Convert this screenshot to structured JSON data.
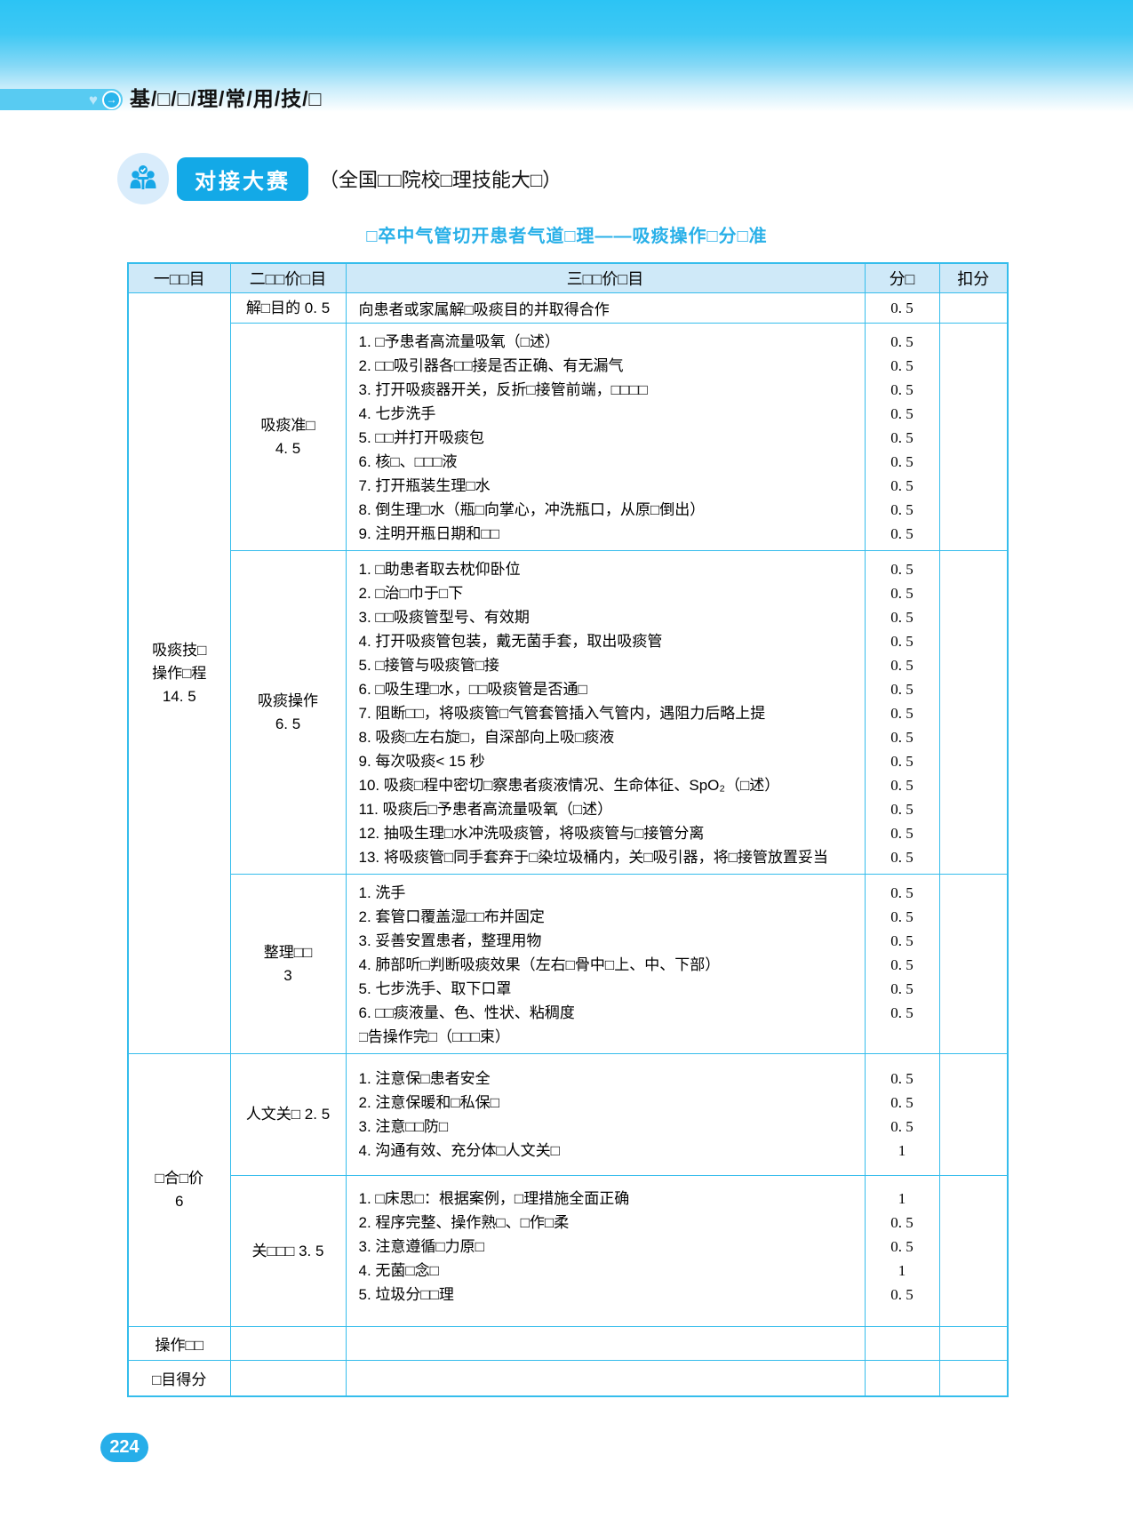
{
  "icons": {
    "heart_glyph": "♥",
    "arrow_glyph": "→"
  },
  "colors": {
    "accent_cyan": "#2bb7ec",
    "table_border": "#35bdec",
    "table_header_bg": "#cfe9f8",
    "badge_button_bg": "#13a9e7",
    "title_text": "#29b0e8",
    "page_pill_bg": "#27aee9"
  },
  "banner": {
    "chapter_title": "基/□/□/理/常/用/技/□"
  },
  "badge": {
    "label": "对接大赛",
    "subtitle": "（全国□□院校□理技能大□）"
  },
  "table_title": "□卒中气管切开患者气道□理——吸痰操作□分□准",
  "score_table": {
    "headers": [
      "一□□目",
      "二□□价□目",
      "三□□价□目",
      "分□",
      "扣分"
    ],
    "level1": [
      {
        "lines": [
          "吸痰技□",
          "操作□程",
          "14. 5"
        ]
      },
      {
        "lines": [
          "□合□价",
          "6"
        ]
      }
    ],
    "groups": [
      {
        "label_lines": [
          "解□目的 0. 5"
        ],
        "items": [
          "向患者或家属解□吸痰目的并取得合作"
        ],
        "scores": [
          "0. 5"
        ]
      },
      {
        "label_lines": [
          "吸痰准□",
          "4. 5"
        ],
        "items": [
          "1. □予患者高流量吸氧（□述）",
          "2. □□吸引器各□□接是否正确、有无漏气",
          "3. 打开吸痰器开关，反折□接管前端，□□□□",
          "4. 七步洗手",
          "5. □□并打开吸痰包",
          "6. 核□、□□□液",
          "7. 打开瓶装生理□水",
          "8. 倒生理□水（瓶□向掌心，冲洗瓶口，从原□倒出）",
          "9. 注明开瓶日期和□□"
        ],
        "scores": [
          "0. 5",
          "0. 5",
          "0. 5",
          "0. 5",
          "0. 5",
          "0. 5",
          "0. 5",
          "0. 5",
          "0. 5"
        ]
      },
      {
        "label_lines": [
          "吸痰操作",
          "6. 5"
        ],
        "items": [
          "1. □助患者取去枕仰卧位",
          "2. □治□巾于□下",
          "3. □□吸痰管型号、有效期",
          "4. 打开吸痰管包装，戴无菌手套，取出吸痰管",
          "5. □接管与吸痰管□接",
          "6. □吸生理□水，□□吸痰管是否通□",
          "7. 阻断□□，将吸痰管□气管套管插入气管内，遇阻力后略上提",
          "8. 吸痰□左右旋□，自深部向上吸□痰液",
          "9. 每次吸痰< 15 秒",
          "10. 吸痰□程中密切□察患者痰液情况、生命体征、SpO₂（□述）",
          "11. 吸痰后□予患者高流量吸氧（□述）",
          "12. 抽吸生理□水冲洗吸痰管，将吸痰管与□接管分离",
          "13. 将吸痰管□同手套弃于□染垃圾桶内，关□吸引器，将□接管放置妥当"
        ],
        "scores": [
          "0. 5",
          "0. 5",
          "0. 5",
          "0. 5",
          "0. 5",
          "0. 5",
          "0. 5",
          "0. 5",
          "0. 5",
          "0. 5",
          "0. 5",
          "0. 5",
          "0. 5"
        ]
      },
      {
        "label_lines": [
          "整理□□",
          "3"
        ],
        "items": [
          "1. 洗手",
          "2. 套管口覆盖湿□□布并固定",
          "3. 妥善安置患者，整理用物",
          "4. 肺部听□判断吸痰效果（左右□骨中□上、中、下部）",
          "5. 七步洗手、取下口罩",
          "6. □□痰液量、色、性状、粘稠度",
          "□告操作完□（□□□束）"
        ],
        "scores": [
          "0. 5",
          "0. 5",
          "0. 5",
          "0. 5",
          "0. 5",
          "0. 5",
          ""
        ]
      },
      {
        "label_lines": [
          "人文关□ 2. 5"
        ],
        "items": [
          "1. 注意保□患者安全",
          "2. 注意保暖和□私保□",
          "3. 注意□□防□",
          "4. 沟通有效、充分体□人文关□"
        ],
        "scores": [
          "0. 5",
          "0. 5",
          "0. 5",
          "1"
        ]
      },
      {
        "label_lines": [
          "关□□□ 3. 5"
        ],
        "items": [
          "1. □床思□：根据案例，□理措施全面正确",
          "2. 程序完整、操作熟□、□作□柔",
          "3. 注意遵循□力原□",
          "4. 无菌□念□",
          "5. 垃圾分□□理"
        ],
        "scores": [
          "1",
          "0. 5",
          "0. 5",
          "1",
          "0. 5"
        ]
      }
    ],
    "footer_rows": [
      {
        "label": "操作□□"
      },
      {
        "label": "□目得分"
      }
    ]
  },
  "page_number": "224"
}
